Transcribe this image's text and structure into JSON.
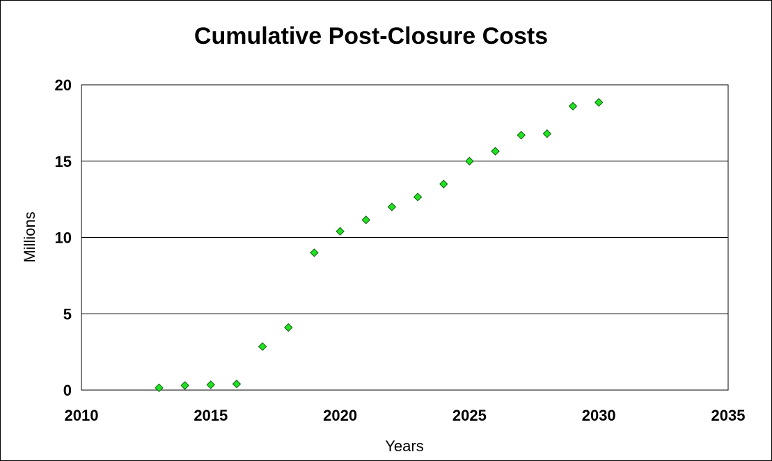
{
  "chart_data": {
    "type": "scatter",
    "title": "Cumulative Post-Closure Costs",
    "xlabel": "Years",
    "ylabel": "Millions",
    "xlim": [
      2010,
      2035
    ],
    "ylim": [
      0,
      20
    ],
    "x_ticks": [
      "2010",
      "2015",
      "2020",
      "2025",
      "2030",
      "2035"
    ],
    "y_ticks": [
      "0",
      "5",
      "10",
      "15",
      "20"
    ],
    "grid": "horizontal",
    "legend": "none",
    "marker": "diamond",
    "colors": {
      "marker_fill": "#22e022",
      "marker_stroke": "#0b5e0b",
      "gridline": "#000000"
    },
    "series": [
      {
        "x": [
          2013,
          2014,
          2015,
          2016,
          2017,
          2018,
          2019,
          2020,
          2021,
          2022,
          2023,
          2024,
          2025,
          2026,
          2027,
          2028,
          2029,
          2030
        ],
        "y": [
          0.15,
          0.3,
          0.35,
          0.4,
          2.85,
          4.1,
          9.0,
          10.4,
          11.15,
          12.0,
          12.65,
          13.5,
          15.0,
          15.65,
          16.7,
          16.8,
          18.6,
          18.85
        ]
      }
    ]
  }
}
